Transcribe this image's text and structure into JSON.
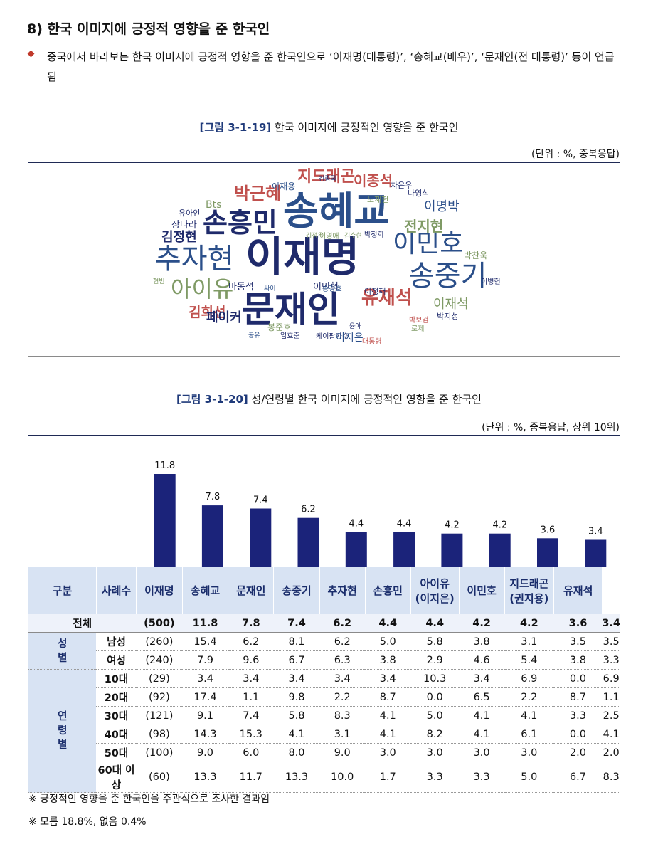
{
  "heading": "8) 한국 이미지에 긍정적 영향을 준 한국인",
  "bullet": "중국에서 바라보는 한국 이미지에 긍정적 영향을 준 한국인으로 ‘이재명(대통령)’, ‘송혜교(배우)’, ‘문재인(전 대통령)’ 등이 언급됨",
  "figure1": {
    "number": "[그림 3-1-19]",
    "title": "한국 이미지에 긍정적인 영향을 준 한국인",
    "unit": "(단위 : %, 중복응답)",
    "words": [
      {
        "text": "이재명",
        "color": "#1f2a6b"
      },
      {
        "text": "문재인",
        "color": "#1f2a6b"
      },
      {
        "text": "송혜교",
        "color": "#2b4f8a"
      },
      {
        "text": "추자현",
        "color": "#2b4f8a"
      },
      {
        "text": "송중기",
        "color": "#2b4f8a"
      },
      {
        "text": "이민호",
        "color": "#2b4f8a"
      },
      {
        "text": "손흥민",
        "color": "#1f2a6b"
      },
      {
        "text": "유재석",
        "color": "#c0504d"
      },
      {
        "text": "아이유",
        "color": "#7f9a65"
      },
      {
        "text": "박근혜",
        "color": "#c0504d"
      },
      {
        "text": "지드래곤",
        "color": "#c0504d"
      },
      {
        "text": "김희선",
        "color": "#c0504d"
      },
      {
        "text": "김정현",
        "color": "#1f2a6b"
      },
      {
        "text": "전지현",
        "color": "#7f9a65"
      },
      {
        "text": "페이커",
        "color": "#1f2a6b"
      },
      {
        "text": "이재석",
        "color": "#7f9a65"
      },
      {
        "text": "이종석",
        "color": "#c0504d"
      },
      {
        "text": "이명박",
        "color": "#2b4f8a"
      },
      {
        "text": "Bts",
        "color": "#7f9a65"
      },
      {
        "text": "마동석",
        "color": "#1f2a6b"
      },
      {
        "text": "이민혁",
        "color": "#1f2a6b"
      },
      {
        "text": "이재용",
        "color": "#2b4f8a"
      },
      {
        "text": "차은우",
        "color": "#1f2a6b"
      },
      {
        "text": "김종국",
        "color": "#1f2a6b"
      },
      {
        "text": "노재헌",
        "color": "#7f9a65"
      },
      {
        "text": "나영석",
        "color": "#1f2a6b"
      },
      {
        "text": "유아인",
        "color": "#1f2a6b"
      },
      {
        "text": "장나라",
        "color": "#1f2a6b"
      },
      {
        "text": "김정은",
        "color": "#7f9a65"
      },
      {
        "text": "이영애",
        "color": "#7f9a65"
      },
      {
        "text": "김수현",
        "color": "#7f9a65"
      },
      {
        "text": "박정희",
        "color": "#1f2a6b"
      },
      {
        "text": "박찬욱",
        "color": "#7f9a65"
      },
      {
        "text": "이병헌",
        "color": "#1f2a6b"
      },
      {
        "text": "현빈",
        "color": "#7f9a65"
      },
      {
        "text": "싸이",
        "color": "#2b4f8a"
      },
      {
        "text": "송강호",
        "color": "#2b4f8a"
      },
      {
        "text": "이정재",
        "color": "#1f2a6b"
      },
      {
        "text": "박지성",
        "color": "#1f2a6b"
      },
      {
        "text": "박보검",
        "color": "#c0504d"
      },
      {
        "text": "로제",
        "color": "#7f9a65"
      },
      {
        "text": "봉준호",
        "color": "#7f9a65"
      },
      {
        "text": "윤아",
        "color": "#1f2a6b"
      },
      {
        "text": "공유",
        "color": "#2b4f8a"
      },
      {
        "text": "임효준",
        "color": "#1f2a6b"
      },
      {
        "text": "케이팝가수",
        "color": "#1f2a6b"
      },
      {
        "text": "이지은",
        "color": "#2b4f8a"
      },
      {
        "text": "대통령",
        "color": "#c0504d"
      },
      {
        "text": "윤석열",
        "color": "#c0504d"
      },
      {
        "text": "김영준",
        "color": "#7f9a65"
      }
    ]
  },
  "figure2": {
    "number": "[그림 3-1-20]",
    "title": "성/연령별 한국 이미지에 긍정적인 영향을 준 한국인",
    "unit": "(단위 : %, 중복응답, 상위 10위)"
  },
  "chart_data": {
    "type": "bar",
    "categories": [
      "이재명",
      "송혜교",
      "문재인",
      "송중기",
      "추자현",
      "손흥민",
      "아이유(이지은)",
      "이민호",
      "지드래곤(권지용)",
      "유재석"
    ],
    "values": [
      11.8,
      7.8,
      7.4,
      6.2,
      4.4,
      4.4,
      4.2,
      4.2,
      3.6,
      3.4
    ],
    "ylim": [
      0,
      11.8
    ],
    "bar_color": "#1b237a"
  },
  "table": {
    "headers": [
      "구분",
      "사례수",
      "이재명",
      "송혜교",
      "문재인",
      "송중기",
      "추자현",
      "손흥민",
      "아이유\n(이지은)",
      "이민호",
      "지드래곤\n(권지용)",
      "유재석"
    ],
    "total": {
      "label": "전체",
      "n": "(500)",
      "values": [
        "11.8",
        "7.8",
        "7.4",
        "6.2",
        "4.4",
        "4.4",
        "4.2",
        "4.2",
        "3.6",
        "3.4"
      ]
    },
    "groups": [
      {
        "name": "성\n별",
        "rows": [
          {
            "label": "남성",
            "n": "(260)",
            "values": [
              "15.4",
              "6.2",
              "8.1",
              "6.2",
              "5.0",
              "5.8",
              "3.8",
              "3.1",
              "3.5",
              "3.5"
            ]
          },
          {
            "label": "여성",
            "n": "(240)",
            "values": [
              "7.9",
              "9.6",
              "6.7",
              "6.3",
              "3.8",
              "2.9",
              "4.6",
              "5.4",
              "3.8",
              "3.3"
            ]
          }
        ]
      },
      {
        "name": "연\n령\n별",
        "rows": [
          {
            "label": "10대",
            "n": "(29)",
            "values": [
              "3.4",
              "3.4",
              "3.4",
              "3.4",
              "3.4",
              "10.3",
              "3.4",
              "6.9",
              "0.0",
              "6.9"
            ]
          },
          {
            "label": "20대",
            "n": "(92)",
            "values": [
              "17.4",
              "1.1",
              "9.8",
              "2.2",
              "8.7",
              "0.0",
              "6.5",
              "2.2",
              "8.7",
              "1.1"
            ]
          },
          {
            "label": "30대",
            "n": "(121)",
            "values": [
              "9.1",
              "7.4",
              "5.8",
              "8.3",
              "4.1",
              "5.0",
              "4.1",
              "4.1",
              "3.3",
              "2.5"
            ]
          },
          {
            "label": "40대",
            "n": "(98)",
            "values": [
              "14.3",
              "15.3",
              "4.1",
              "3.1",
              "4.1",
              "8.2",
              "4.1",
              "6.1",
              "0.0",
              "4.1"
            ]
          },
          {
            "label": "50대",
            "n": "(100)",
            "values": [
              "9.0",
              "6.0",
              "8.0",
              "9.0",
              "3.0",
              "3.0",
              "3.0",
              "3.0",
              "2.0",
              "2.0"
            ]
          },
          {
            "label": "60대 이상",
            "n": "(60)",
            "values": [
              "13.3",
              "11.7",
              "13.3",
              "10.0",
              "1.7",
              "3.3",
              "3.3",
              "5.0",
              "6.7",
              "8.3"
            ]
          }
        ]
      }
    ]
  },
  "notes": [
    "※ 긍정적인 영향을 준 한국인을 주관식으로 조사한 결과임",
    "※ 모름 18.8%, 없음 0.4%"
  ]
}
